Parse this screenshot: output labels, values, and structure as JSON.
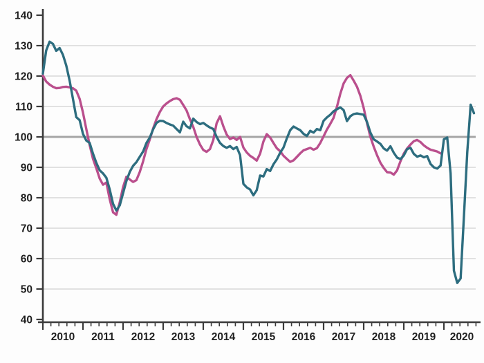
{
  "chart_data": {
    "type": "line",
    "title": "",
    "subtitle": "",
    "legend": "none",
    "grid": "horizontal",
    "x_axis": {
      "label": "",
      "tick_labels": [
        "2010",
        "2011",
        "2012",
        "2013",
        "2014",
        "2015",
        "2016",
        "2017",
        "2018",
        "2019",
        "2020"
      ],
      "start_year": 2010,
      "points_per_year": 12,
      "interval": "monthly"
    },
    "y_axis": {
      "label": "",
      "min": 40,
      "max": 140,
      "tick_step": 10,
      "tick_labels": [
        "140",
        "130",
        "120",
        "110",
        "100",
        "90",
        "80",
        "70",
        "60",
        "50",
        "40"
      ]
    },
    "reference_line": {
      "value": 100
    },
    "series": [
      {
        "name": "pink-index-line",
        "color": "#ba4f8d",
        "start": "2010-01",
        "end": "2019-12",
        "values": [
          120.2,
          118.2,
          117.2,
          116.5,
          116.0,
          116.1,
          116.4,
          116.5,
          116.3,
          116.0,
          115.2,
          112.5,
          108.0,
          102.6,
          97.3,
          92.8,
          89.7,
          86.3,
          84.3,
          85.0,
          79.5,
          75.2,
          74.4,
          78.5,
          83.5,
          86.9,
          86.0,
          85.2,
          85.8,
          88.5,
          92.0,
          96.0,
          99.2,
          102.8,
          105.8,
          108.2,
          110.0,
          111.0,
          111.8,
          112.4,
          112.7,
          112.2,
          110.5,
          108.7,
          105.8,
          103.3,
          100.0,
          97.5,
          95.7,
          95.1,
          96.0,
          99.0,
          104.5,
          106.8,
          103.5,
          100.8,
          99.3,
          99.8,
          99.0,
          100.0,
          96.5,
          94.9,
          93.8,
          93.1,
          92.2,
          94.5,
          98.5,
          100.9,
          99.8,
          98.0,
          96.3,
          95.3,
          93.8,
          92.8,
          91.8,
          92.3,
          93.4,
          94.6,
          95.6,
          96.0,
          96.4,
          95.8,
          96.3,
          98.0,
          100.2,
          102.4,
          104.3,
          106.3,
          109.9,
          114.2,
          117.6,
          119.4,
          120.3,
          118.5,
          116.5,
          113.5,
          109.5,
          104.5,
          100.0,
          96.8,
          94.0,
          91.5,
          89.8,
          88.4,
          88.3,
          87.6,
          89.0,
          92.0,
          94.5,
          96.2,
          97.5,
          98.6,
          99.0,
          98.3,
          97.2,
          96.4,
          95.8,
          95.5,
          95.2,
          94.6
        ]
      },
      {
        "name": "teal-index-line",
        "color": "#2d6d7f",
        "start": "2010-01",
        "end": "2020-10",
        "values": [
          120.8,
          128.4,
          131.3,
          130.6,
          128.3,
          129.2,
          127.0,
          123.5,
          118.5,
          112.5,
          106.5,
          105.5,
          101.0,
          98.8,
          98.0,
          94.5,
          91.5,
          89.0,
          88.0,
          86.6,
          82.7,
          78.0,
          75.8,
          77.5,
          81.5,
          85.5,
          88.5,
          90.5,
          91.7,
          93.5,
          95.2,
          98.0,
          99.8,
          102.5,
          104.6,
          105.3,
          105.2,
          104.6,
          104.1,
          103.7,
          102.6,
          101.5,
          105.0,
          103.5,
          102.8,
          106.0,
          104.9,
          104.2,
          104.6,
          103.8,
          103.1,
          102.6,
          100.0,
          98.0,
          97.0,
          96.4,
          97.0,
          96.0,
          96.7,
          94.0,
          84.6,
          83.4,
          82.7,
          80.8,
          82.5,
          87.3,
          87.0,
          89.4,
          88.8,
          91.0,
          92.6,
          94.8,
          96.5,
          99.5,
          102.2,
          103.4,
          102.8,
          102.2,
          101.0,
          100.3,
          102.0,
          101.4,
          102.6,
          102.2,
          105.3,
          106.4,
          107.3,
          108.4,
          109.1,
          109.7,
          108.8,
          105.2,
          106.8,
          107.5,
          107.7,
          107.5,
          107.3,
          104.9,
          101.4,
          99.2,
          98.5,
          97.7,
          96.2,
          95.5,
          96.9,
          94.8,
          93.2,
          92.7,
          93.9,
          96.0,
          96.4,
          94.4,
          93.5,
          93.9,
          93.3,
          93.7,
          91.1,
          90.0,
          89.6,
          90.6,
          99.2,
          99.8,
          88.0,
          56.0,
          52.0,
          53.5,
          74.0,
          95.0,
          110.6,
          107.8
        ]
      }
    ]
  },
  "colors": {
    "background": "#fdfdfd",
    "axis": "#3a3a3a",
    "gridline": "#d8d8d8",
    "reference_line": "#a5a5a5",
    "tick_text": "#1f1f1f",
    "series_teal": "#2d6d7f",
    "series_pink": "#ba4f8d"
  }
}
